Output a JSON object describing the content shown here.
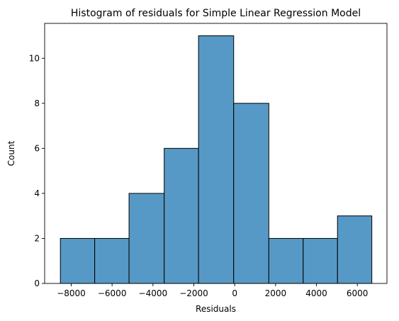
{
  "chart_data": {
    "type": "bar",
    "subtype": "histogram",
    "title": "Histogram of residuals for Simple Linear Regression Model",
    "xlabel": "Residuals",
    "ylabel": "Count",
    "xlim": [
      -9300,
      7450
    ],
    "ylim": [
      0,
      11.55
    ],
    "xticks": [
      -8000,
      -6000,
      -4000,
      -2000,
      0,
      2000,
      4000,
      6000
    ],
    "yticks": [
      0,
      2,
      4,
      6,
      8,
      10
    ],
    "bins": [
      {
        "start": -8530,
        "end": -6850,
        "count": 2
      },
      {
        "start": -6850,
        "end": -5170,
        "count": 2
      },
      {
        "start": -5170,
        "end": -3450,
        "count": 4
      },
      {
        "start": -3450,
        "end": -1770,
        "count": 6
      },
      {
        "start": -1770,
        "end": -50,
        "count": 11
      },
      {
        "start": -50,
        "end": 1670,
        "count": 8
      },
      {
        "start": 1670,
        "end": 3350,
        "count": 2
      },
      {
        "start": 3350,
        "end": 5030,
        "count": 2
      },
      {
        "start": 5030,
        "end": 6710,
        "count": 3
      }
    ],
    "bar_color": "#5799c6",
    "edge_color": "#000000",
    "grid": false
  }
}
